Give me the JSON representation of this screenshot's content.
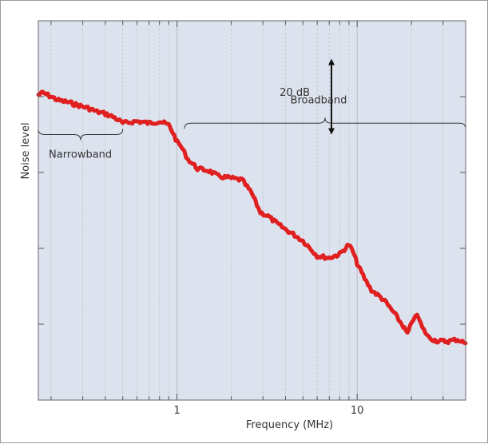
{
  "chart_data": {
    "type": "line",
    "title": "",
    "xlabel": "Frequency (MHz)",
    "ylabel": "Noise level",
    "x_scale": "log",
    "xlim": [
      0.17,
      40
    ],
    "x_ticks": [
      {
        "value": 1,
        "label": "1"
      },
      {
        "value": 10,
        "label": "10"
      }
    ],
    "ylim": [
      0,
      100
    ],
    "y_tick_values": [
      20,
      40,
      60,
      80
    ],
    "grid": true,
    "colors": {
      "plot_background": "#dde3ee",
      "series": "#e02020",
      "grid": "#b8bcc6"
    },
    "series": [
      {
        "x": [
          0.17,
          0.18,
          0.2,
          0.22,
          0.25,
          0.28,
          0.32,
          0.36,
          0.4,
          0.45,
          0.5,
          0.6,
          0.7,
          0.8,
          0.9,
          0.95,
          1.0,
          1.05,
          1.15,
          1.3,
          1.5,
          1.7,
          2.0,
          2.3,
          2.6,
          2.9,
          3.2,
          3.6,
          4.0,
          4.5,
          5.0,
          5.5,
          6.0,
          7.0,
          8.0,
          9.0,
          9.5,
          10.0,
          11.0,
          12.0,
          14.0,
          16.0,
          18.0,
          19.0,
          20.0,
          21.0,
          22.0,
          23.0,
          25.0,
          28.0,
          32.0,
          36.0,
          40.0
        ],
        "y": [
          80.5,
          81.0,
          80.0,
          79.0,
          78.5,
          77.8,
          77.0,
          76.0,
          75.5,
          74.5,
          73.0,
          73.5,
          73.0,
          73.5,
          72.5,
          70.5,
          68.0,
          67.0,
          63.5,
          61.0,
          60.5,
          59.0,
          58.5,
          58.0,
          54.5,
          49.5,
          48.5,
          46.5,
          45.0,
          43.5,
          42.0,
          40.0,
          38.0,
          37.5,
          38.5,
          41.0,
          39.0,
          36.0,
          32.0,
          29.0,
          26.5,
          23.0,
          19.5,
          17.5,
          20.0,
          22.5,
          21.5,
          19.0,
          16.5,
          15.5,
          15.5,
          16.0,
          15.0
        ]
      }
    ],
    "annotations": [
      {
        "text": "20 dB",
        "type": "scale-arrow",
        "x": 7.2,
        "y_from": 70,
        "y_to": 90
      },
      {
        "text": "Broadband",
        "type": "brace",
        "x_from": 1.1,
        "x_to": 40,
        "y": 73
      },
      {
        "text": "Narrowband",
        "type": "brace",
        "x_from": 0.17,
        "x_to": 0.5,
        "y": 70
      }
    ]
  }
}
